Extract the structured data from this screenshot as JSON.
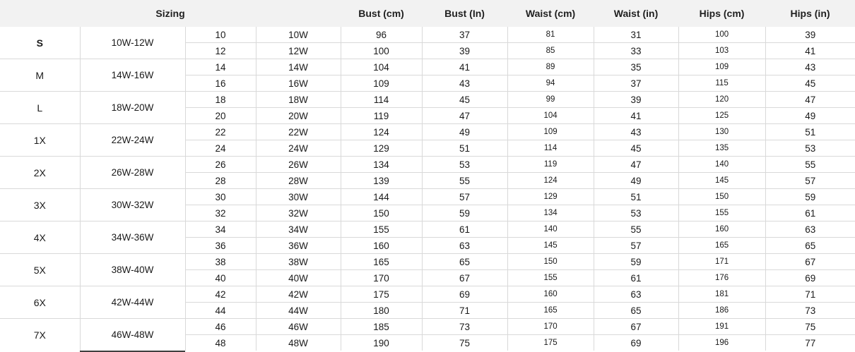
{
  "colors": {
    "header_bg": "#f2f2f2",
    "gridline": "#d9d9d9"
  },
  "table": {
    "header": {
      "sizing": "Sizing",
      "columns": [
        "Bust (cm)",
        "Bust (In)",
        "Waist (cm)",
        "Waist (in)",
        "Hips (cm)",
        "Hips (in)"
      ]
    },
    "column_keys": [
      "size-num",
      "size-w",
      "bust-cm",
      "bust-in",
      "waist-cm",
      "waist-in",
      "hips-cm",
      "hips-in"
    ],
    "groups": [
      {
        "label": "S",
        "range": "10W-12W",
        "rows": [
          [
            "10",
            "10W",
            "96",
            "37",
            "81",
            "31",
            "100",
            "39"
          ],
          [
            "12",
            "12W",
            "100",
            "39",
            "85",
            "33",
            "103",
            "41"
          ]
        ]
      },
      {
        "label": "M",
        "range": "14W-16W",
        "rows": [
          [
            "14",
            "14W",
            "104",
            "41",
            "89",
            "35",
            "109",
            "43"
          ],
          [
            "16",
            "16W",
            "109",
            "43",
            "94",
            "37",
            "115",
            "45"
          ]
        ]
      },
      {
        "label": "L",
        "range": "18W-20W",
        "rows": [
          [
            "18",
            "18W",
            "114",
            "45",
            "99",
            "39",
            "120",
            "47"
          ],
          [
            "20",
            "20W",
            "119",
            "47",
            "104",
            "41",
            "125",
            "49"
          ]
        ]
      },
      {
        "label": "1X",
        "range": "22W-24W",
        "rows": [
          [
            "22",
            "22W",
            "124",
            "49",
            "109",
            "43",
            "130",
            "51"
          ],
          [
            "24",
            "24W",
            "129",
            "51",
            "114",
            "45",
            "135",
            "53"
          ]
        ]
      },
      {
        "label": "2X",
        "range": "26W-28W",
        "rows": [
          [
            "26",
            "26W",
            "134",
            "53",
            "119",
            "47",
            "140",
            "55"
          ],
          [
            "28",
            "28W",
            "139",
            "55",
            "124",
            "49",
            "145",
            "57"
          ]
        ]
      },
      {
        "label": "3X",
        "range": "30W-32W",
        "rows": [
          [
            "30",
            "30W",
            "144",
            "57",
            "129",
            "51",
            "150",
            "59"
          ],
          [
            "32",
            "32W",
            "150",
            "59",
            "134",
            "53",
            "155",
            "61"
          ]
        ]
      },
      {
        "label": "4X",
        "range": "34W-36W",
        "rows": [
          [
            "34",
            "34W",
            "155",
            "61",
            "140",
            "55",
            "160",
            "63"
          ],
          [
            "36",
            "36W",
            "160",
            "63",
            "145",
            "57",
            "165",
            "65"
          ]
        ]
      },
      {
        "label": "5X",
        "range": "38W-40W",
        "rows": [
          [
            "38",
            "38W",
            "165",
            "65",
            "150",
            "59",
            "171",
            "67"
          ],
          [
            "40",
            "40W",
            "170",
            "67",
            "155",
            "61",
            "176",
            "69"
          ]
        ]
      },
      {
        "label": "6X",
        "range": "42W-44W",
        "rows": [
          [
            "42",
            "42W",
            "175",
            "69",
            "160",
            "63",
            "181",
            "71"
          ],
          [
            "44",
            "44W",
            "180",
            "71",
            "165",
            "65",
            "186",
            "73"
          ]
        ]
      },
      {
        "label": "7X",
        "range": "46W-48W",
        "rows": [
          [
            "46",
            "46W",
            "185",
            "73",
            "170",
            "67",
            "191",
            "75"
          ],
          [
            "48",
            "48W",
            "190",
            "75",
            "175",
            "69",
            "196",
            "77"
          ]
        ]
      }
    ]
  }
}
